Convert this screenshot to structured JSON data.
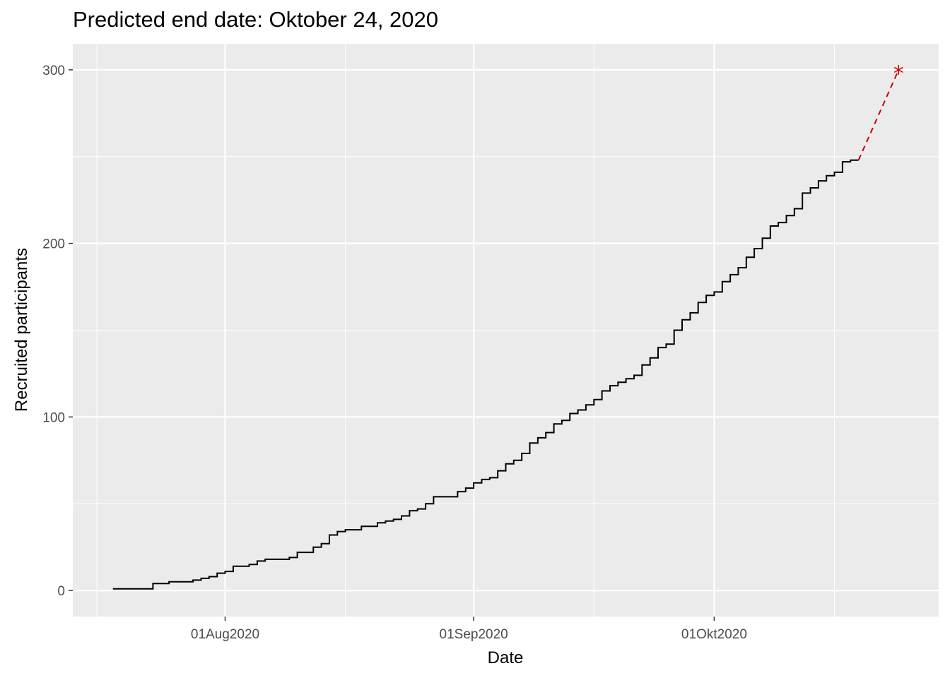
{
  "chart_data": {
    "type": "line",
    "title": "Predicted end date: Oktober 24, 2020",
    "xlabel": "Date",
    "ylabel": "Recruited participants",
    "x_axis": {
      "scale": "date",
      "range": [
        "2020-07-13",
        "2020-10-29"
      ]
    },
    "y_axis": {
      "range": [
        -15,
        315
      ]
    },
    "x_ticks": [
      {
        "date": "2020-08-01",
        "label": "01Aug2020"
      },
      {
        "date": "2020-09-01",
        "label": "01Sep2020"
      },
      {
        "date": "2020-10-01",
        "label": "01Okt2020"
      }
    ],
    "x_minor_ticks": [
      "2020-07-16",
      "2020-08-16",
      "2020-09-16",
      "2020-10-16"
    ],
    "y_ticks": [
      0,
      100,
      200,
      300
    ],
    "y_minor_ticks": [
      50,
      150,
      250
    ],
    "grid": true,
    "legend": "none",
    "colors": {
      "panel": "#ebebeb",
      "grid": "#ffffff",
      "observed": "#000000",
      "prediction": "#cd0000"
    },
    "series": [
      {
        "style": "step",
        "color": "#000000",
        "points": [
          [
            "2020-07-18",
            1
          ],
          [
            "2020-07-23",
            4
          ],
          [
            "2020-07-25",
            5
          ],
          [
            "2020-07-28",
            6
          ],
          [
            "2020-07-29",
            7
          ],
          [
            "2020-07-30",
            8
          ],
          [
            "2020-07-31",
            10
          ],
          [
            "2020-08-01",
            11
          ],
          [
            "2020-08-02",
            14
          ],
          [
            "2020-08-04",
            15
          ],
          [
            "2020-08-05",
            17
          ],
          [
            "2020-08-06",
            18
          ],
          [
            "2020-08-09",
            19
          ],
          [
            "2020-08-10",
            22
          ],
          [
            "2020-08-12",
            25
          ],
          [
            "2020-08-13",
            27
          ],
          [
            "2020-08-14",
            32
          ],
          [
            "2020-08-15",
            34
          ],
          [
            "2020-08-16",
            35
          ],
          [
            "2020-08-18",
            37
          ],
          [
            "2020-08-20",
            39
          ],
          [
            "2020-08-21",
            40
          ],
          [
            "2020-08-22",
            41
          ],
          [
            "2020-08-23",
            43
          ],
          [
            "2020-08-24",
            46
          ],
          [
            "2020-08-25",
            47
          ],
          [
            "2020-08-26",
            50
          ],
          [
            "2020-08-27",
            54
          ],
          [
            "2020-08-30",
            57
          ],
          [
            "2020-08-31",
            59
          ],
          [
            "2020-09-01",
            62
          ],
          [
            "2020-09-02",
            64
          ],
          [
            "2020-09-03",
            65
          ],
          [
            "2020-09-04",
            69
          ],
          [
            "2020-09-05",
            73
          ],
          [
            "2020-09-06",
            75
          ],
          [
            "2020-09-07",
            79
          ],
          [
            "2020-09-08",
            85
          ],
          [
            "2020-09-09",
            88
          ],
          [
            "2020-09-10",
            91
          ],
          [
            "2020-09-11",
            96
          ],
          [
            "2020-09-12",
            98
          ],
          [
            "2020-09-13",
            102
          ],
          [
            "2020-09-14",
            104
          ],
          [
            "2020-09-15",
            107
          ],
          [
            "2020-09-16",
            110
          ],
          [
            "2020-09-17",
            115
          ],
          [
            "2020-09-18",
            118
          ],
          [
            "2020-09-19",
            120
          ],
          [
            "2020-09-20",
            122
          ],
          [
            "2020-09-21",
            124
          ],
          [
            "2020-09-22",
            130
          ],
          [
            "2020-09-23",
            134
          ],
          [
            "2020-09-24",
            140
          ],
          [
            "2020-09-25",
            142
          ],
          [
            "2020-09-26",
            150
          ],
          [
            "2020-09-27",
            156
          ],
          [
            "2020-09-28",
            160
          ],
          [
            "2020-09-29",
            166
          ],
          [
            "2020-09-30",
            170
          ],
          [
            "2020-10-01",
            172
          ],
          [
            "2020-10-02",
            178
          ],
          [
            "2020-10-03",
            182
          ],
          [
            "2020-10-04",
            186
          ],
          [
            "2020-10-05",
            192
          ],
          [
            "2020-10-06",
            197
          ],
          [
            "2020-10-07",
            203
          ],
          [
            "2020-10-08",
            210
          ],
          [
            "2020-10-09",
            212
          ],
          [
            "2020-10-10",
            216
          ],
          [
            "2020-10-11",
            220
          ],
          [
            "2020-10-12",
            229
          ],
          [
            "2020-10-13",
            232
          ],
          [
            "2020-10-14",
            236
          ],
          [
            "2020-10-15",
            239
          ],
          [
            "2020-10-16",
            241
          ],
          [
            "2020-10-17",
            247
          ],
          [
            "2020-10-18",
            248
          ],
          [
            "2020-10-19",
            248
          ]
        ]
      },
      {
        "style": "dashed",
        "color": "#cd0000",
        "points": [
          [
            "2020-10-19",
            248
          ],
          [
            "2020-10-24",
            300
          ]
        ]
      }
    ],
    "end_marker": {
      "date": "2020-10-24",
      "value": 300,
      "shape": "asterisk",
      "color": "#cd0000"
    }
  }
}
